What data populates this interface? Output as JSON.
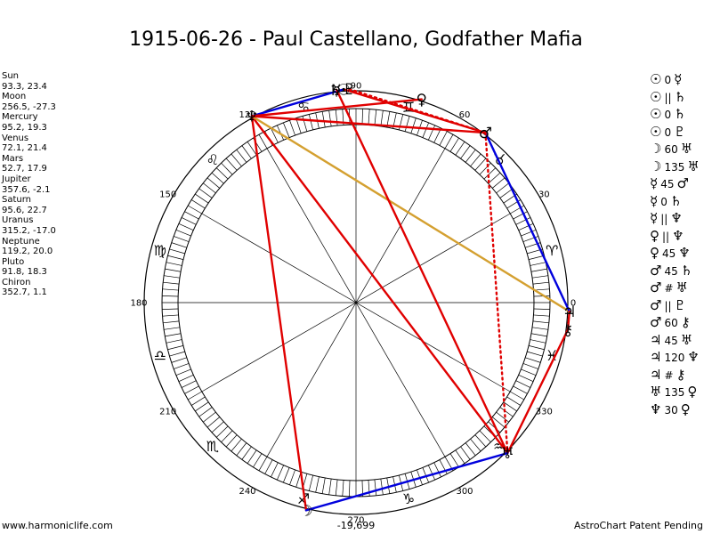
{
  "title": "1915-06-26 - Paul Castellano, Godfather Mafia",
  "positions": [
    {
      "name": "Sun",
      "value": "93.3, 23.4"
    },
    {
      "name": "Moon",
      "value": "256.5, -27.3"
    },
    {
      "name": "Mercury",
      "value": "95.2, 19.3"
    },
    {
      "name": "Venus",
      "value": "72.1, 21.4"
    },
    {
      "name": "Mars",
      "value": "52.7, 17.9"
    },
    {
      "name": "Jupiter",
      "value": "357.6, -2.1"
    },
    {
      "name": "Saturn",
      "value": "95.6, 22.7"
    },
    {
      "name": "Uranus",
      "value": "315.2, -17.0"
    },
    {
      "name": "Neptune",
      "value": "119.2, 20.0"
    },
    {
      "name": "Pluto",
      "value": "91.8, 18.3"
    },
    {
      "name": "Chiron",
      "value": "352.7, 1.1"
    }
  ],
  "aspects": [
    {
      "p1": "☉",
      "aspect": "0",
      "p2": "☿"
    },
    {
      "p1": "☉",
      "aspect": "||",
      "p2": "♄"
    },
    {
      "p1": "☉",
      "aspect": "0",
      "p2": "♄"
    },
    {
      "p1": "☉",
      "aspect": "0",
      "p2": "♇"
    },
    {
      "p1": "☽",
      "aspect": "60",
      "p2": "♅"
    },
    {
      "p1": "☽",
      "aspect": "135",
      "p2": "♅"
    },
    {
      "p1": "☿",
      "aspect": "45",
      "p2": "♂"
    },
    {
      "p1": "☿",
      "aspect": "0",
      "p2": "♄"
    },
    {
      "p1": "☿",
      "aspect": "||",
      "p2": "♆"
    },
    {
      "p1": "♀",
      "aspect": "||",
      "p2": "♆"
    },
    {
      "p1": "♀",
      "aspect": "45",
      "p2": "♆"
    },
    {
      "p1": "♂",
      "aspect": "45",
      "p2": "♄"
    },
    {
      "p1": "♂",
      "aspect": "#",
      "p2": "♅"
    },
    {
      "p1": "♂",
      "aspect": "||",
      "p2": "♇"
    },
    {
      "p1": "♂",
      "aspect": "60",
      "p2": "⚷"
    },
    {
      "p1": "♃",
      "aspect": "45",
      "p2": "♅"
    },
    {
      "p1": "♃",
      "aspect": "120",
      "p2": "♆"
    },
    {
      "p1": "♃",
      "aspect": "#",
      "p2": "⚷"
    },
    {
      "p1": "♅",
      "aspect": "135",
      "p2": "♀"
    },
    {
      "p1": "♆",
      "aspect": "30",
      "p2": "♀"
    }
  ],
  "wheel": {
    "degree_labels": [
      "0",
      "30",
      "60",
      "90",
      "120",
      "150",
      "180",
      "210",
      "240",
      "270",
      "300",
      "330"
    ],
    "zodiac_signs": [
      {
        "name": "aries",
        "glyph": "♈",
        "lon": 15
      },
      {
        "name": "taurus",
        "glyph": "♉",
        "lon": 45
      },
      {
        "name": "gemini",
        "glyph": "♊",
        "lon": 75
      },
      {
        "name": "cancer",
        "glyph": "♋",
        "lon": 105
      },
      {
        "name": "leo",
        "glyph": "♌",
        "lon": 135
      },
      {
        "name": "virgo",
        "glyph": "♍",
        "lon": 165
      },
      {
        "name": "libra",
        "glyph": "♎",
        "lon": 195
      },
      {
        "name": "scorpio",
        "glyph": "♏",
        "lon": 225
      },
      {
        "name": "sagittarius",
        "glyph": "♐",
        "lon": 255
      },
      {
        "name": "capricorn",
        "glyph": "♑",
        "lon": 285
      },
      {
        "name": "aquarius",
        "glyph": "♒",
        "lon": 315
      },
      {
        "name": "pisces",
        "glyph": "♓",
        "lon": 345
      }
    ],
    "planets": [
      {
        "name": "sun",
        "glyph": "☉",
        "lon": 93.3
      },
      {
        "name": "moon",
        "glyph": "☽",
        "lon": 256.5
      },
      {
        "name": "mercury",
        "glyph": "☿",
        "lon": 95.2
      },
      {
        "name": "venus",
        "glyph": "♀",
        "lon": 72.1
      },
      {
        "name": "mars",
        "glyph": "♂",
        "lon": 52.7
      },
      {
        "name": "jupiter",
        "glyph": "♃",
        "lon": 357.6
      },
      {
        "name": "saturn",
        "glyph": "♄",
        "lon": 95.6
      },
      {
        "name": "uranus",
        "glyph": "♅",
        "lon": 315.2
      },
      {
        "name": "neptune",
        "glyph": "♆",
        "lon": 119.2
      },
      {
        "name": "pluto",
        "glyph": "♇",
        "lon": 91.8
      },
      {
        "name": "chiron",
        "glyph": "⚷",
        "lon": 352.7
      }
    ],
    "aspect_lines": [
      {
        "a": "neptune",
        "b": "uranus",
        "color": "#e00000",
        "style": "solid"
      },
      {
        "a": "neptune",
        "b": "moon",
        "color": "#e00000",
        "style": "solid"
      },
      {
        "a": "neptune",
        "b": "jupiter",
        "color": "#d4a030",
        "style": "solid"
      },
      {
        "a": "neptune",
        "b": "mars",
        "color": "#e00000",
        "style": "solid"
      },
      {
        "a": "neptune",
        "b": "sun",
        "color": "#0000dd",
        "style": "solid"
      },
      {
        "a": "mercury",
        "b": "uranus",
        "color": "#e00000",
        "style": "solid"
      },
      {
        "a": "venus",
        "b": "neptune",
        "color": "#e00000",
        "style": "solid"
      },
      {
        "a": "pluto",
        "b": "mars",
        "color": "#e00000",
        "style": "dotted"
      },
      {
        "a": "mars",
        "b": "jupiter",
        "color": "#0000dd",
        "style": "solid"
      },
      {
        "a": "mars",
        "b": "uranus",
        "color": "#e00000",
        "style": "dotted"
      },
      {
        "a": "jupiter",
        "b": "chiron",
        "color": "#e00000",
        "style": "solid"
      },
      {
        "a": "chiron",
        "b": "uranus",
        "color": "#e00000",
        "style": "solid"
      },
      {
        "a": "moon",
        "b": "uranus",
        "color": "#0000dd",
        "style": "solid"
      },
      {
        "a": "sun",
        "b": "mars",
        "color": "#e00000",
        "style": "solid"
      }
    ]
  },
  "footer": {
    "left": "www.harmoniclife.com",
    "center": "-19,699",
    "right": "AstroChart Patent Pending"
  }
}
